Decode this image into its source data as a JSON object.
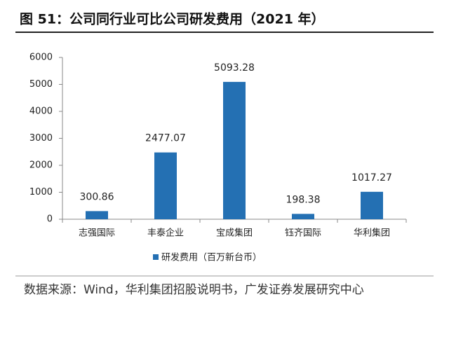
{
  "chart_data": {
    "type": "bar",
    "title": "图 51：公司同行业可比公司研发费用（2021 年）",
    "categories": [
      "志强国际",
      "丰泰企业",
      "宝成集团",
      "钰齐国际",
      "华利集团"
    ],
    "series": [
      {
        "name": "研发费用（百万新台币）",
        "color": "#2470b3",
        "values": [
          300.86,
          2477.07,
          5093.28,
          198.38,
          1017.27
        ]
      }
    ],
    "ylim": [
      0,
      6000
    ],
    "yticks": [
      0,
      1000,
      2000,
      3000,
      4000,
      5000,
      6000
    ],
    "grid": false,
    "legend": "bottom",
    "source": "数据来源：Wind，华利集团招股说明书，广发证券发展研究中心"
  }
}
